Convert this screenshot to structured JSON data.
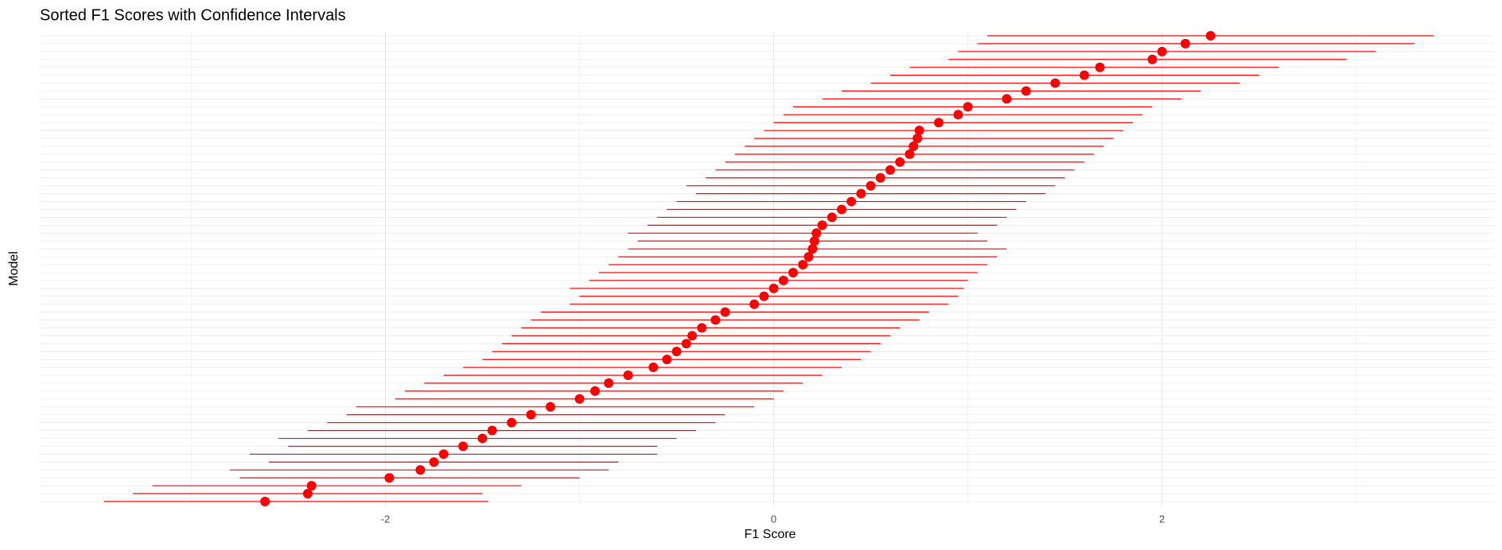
{
  "chart_data": {
    "type": "pointrange",
    "title": "Sorted F1 Scores with Confidence Intervals",
    "x_label": "F1 Score",
    "y_label": "Model",
    "categories": [
      null,
      null,
      null,
      null,
      null,
      null,
      null,
      null,
      null,
      null,
      null,
      null,
      null,
      null,
      null,
      null,
      null,
      null,
      null,
      null,
      null,
      null,
      null,
      null,
      null,
      null,
      null,
      null,
      null,
      null,
      null,
      null,
      null,
      null,
      null,
      null,
      null,
      null,
      null,
      null,
      null,
      null,
      null,
      null,
      null,
      null,
      null,
      null,
      null,
      null,
      null,
      null,
      null,
      null,
      null,
      null,
      null,
      null,
      null,
      null
    ],
    "values": [
      -2.62,
      -2.4,
      -2.38,
      -1.98,
      -1.82,
      -1.75,
      -1.7,
      -1.6,
      -1.5,
      -1.45,
      -1.35,
      -1.25,
      -1.15,
      -1.0,
      -0.92,
      -0.85,
      -0.75,
      -0.62,
      -0.55,
      -0.5,
      -0.45,
      -0.42,
      -0.37,
      -0.3,
      -0.25,
      -0.1,
      -0.05,
      0.0,
      0.05,
      0.1,
      0.15,
      0.18,
      0.2,
      0.21,
      0.22,
      0.25,
      0.3,
      0.35,
      0.4,
      0.45,
      0.5,
      0.55,
      0.6,
      0.65,
      0.7,
      0.72,
      0.74,
      0.75,
      0.85,
      0.95,
      1.0,
      1.2,
      1.3,
      1.45,
      1.6,
      1.68,
      1.95,
      2.0,
      2.12,
      2.25
    ],
    "lower": [
      -3.45,
      -3.3,
      -3.2,
      -2.75,
      -2.8,
      -2.6,
      -2.7,
      -2.5,
      -2.55,
      -2.4,
      -2.3,
      -2.2,
      -2.15,
      -1.95,
      -1.9,
      -1.8,
      -1.7,
      -1.6,
      -1.5,
      -1.45,
      -1.4,
      -1.35,
      -1.3,
      -1.25,
      -1.2,
      -1.05,
      -1.0,
      -1.05,
      -0.95,
      -0.9,
      -0.85,
      -0.8,
      -0.75,
      -0.7,
      -0.75,
      -0.65,
      -0.6,
      -0.55,
      -0.5,
      -0.4,
      -0.45,
      -0.35,
      -0.3,
      -0.25,
      -0.2,
      -0.15,
      -0.1,
      -0.05,
      0.0,
      0.05,
      0.1,
      0.25,
      0.35,
      0.5,
      0.6,
      0.7,
      0.9,
      0.95,
      1.05,
      1.1
    ],
    "upper": [
      -1.47,
      -1.5,
      -1.3,
      -1.0,
      -0.85,
      -0.8,
      -0.6,
      -0.6,
      -0.5,
      -0.4,
      -0.3,
      -0.25,
      -0.1,
      0.0,
      0.05,
      0.15,
      0.25,
      0.35,
      0.45,
      0.5,
      0.55,
      0.6,
      0.65,
      0.75,
      0.8,
      0.9,
      0.95,
      0.98,
      1.0,
      1.05,
      1.1,
      1.15,
      1.2,
      1.1,
      1.05,
      1.15,
      1.2,
      1.25,
      1.3,
      1.4,
      1.45,
      1.5,
      1.55,
      1.6,
      1.65,
      1.7,
      1.75,
      1.8,
      1.85,
      1.9,
      1.95,
      2.1,
      2.2,
      2.4,
      2.5,
      2.6,
      2.95,
      3.1,
      3.3,
      3.4
    ],
    "color": "#ff0000",
    "xlim": [
      -3.78,
      3.71
    ],
    "xticks": [
      -2,
      0,
      2
    ],
    "grid": true
  }
}
